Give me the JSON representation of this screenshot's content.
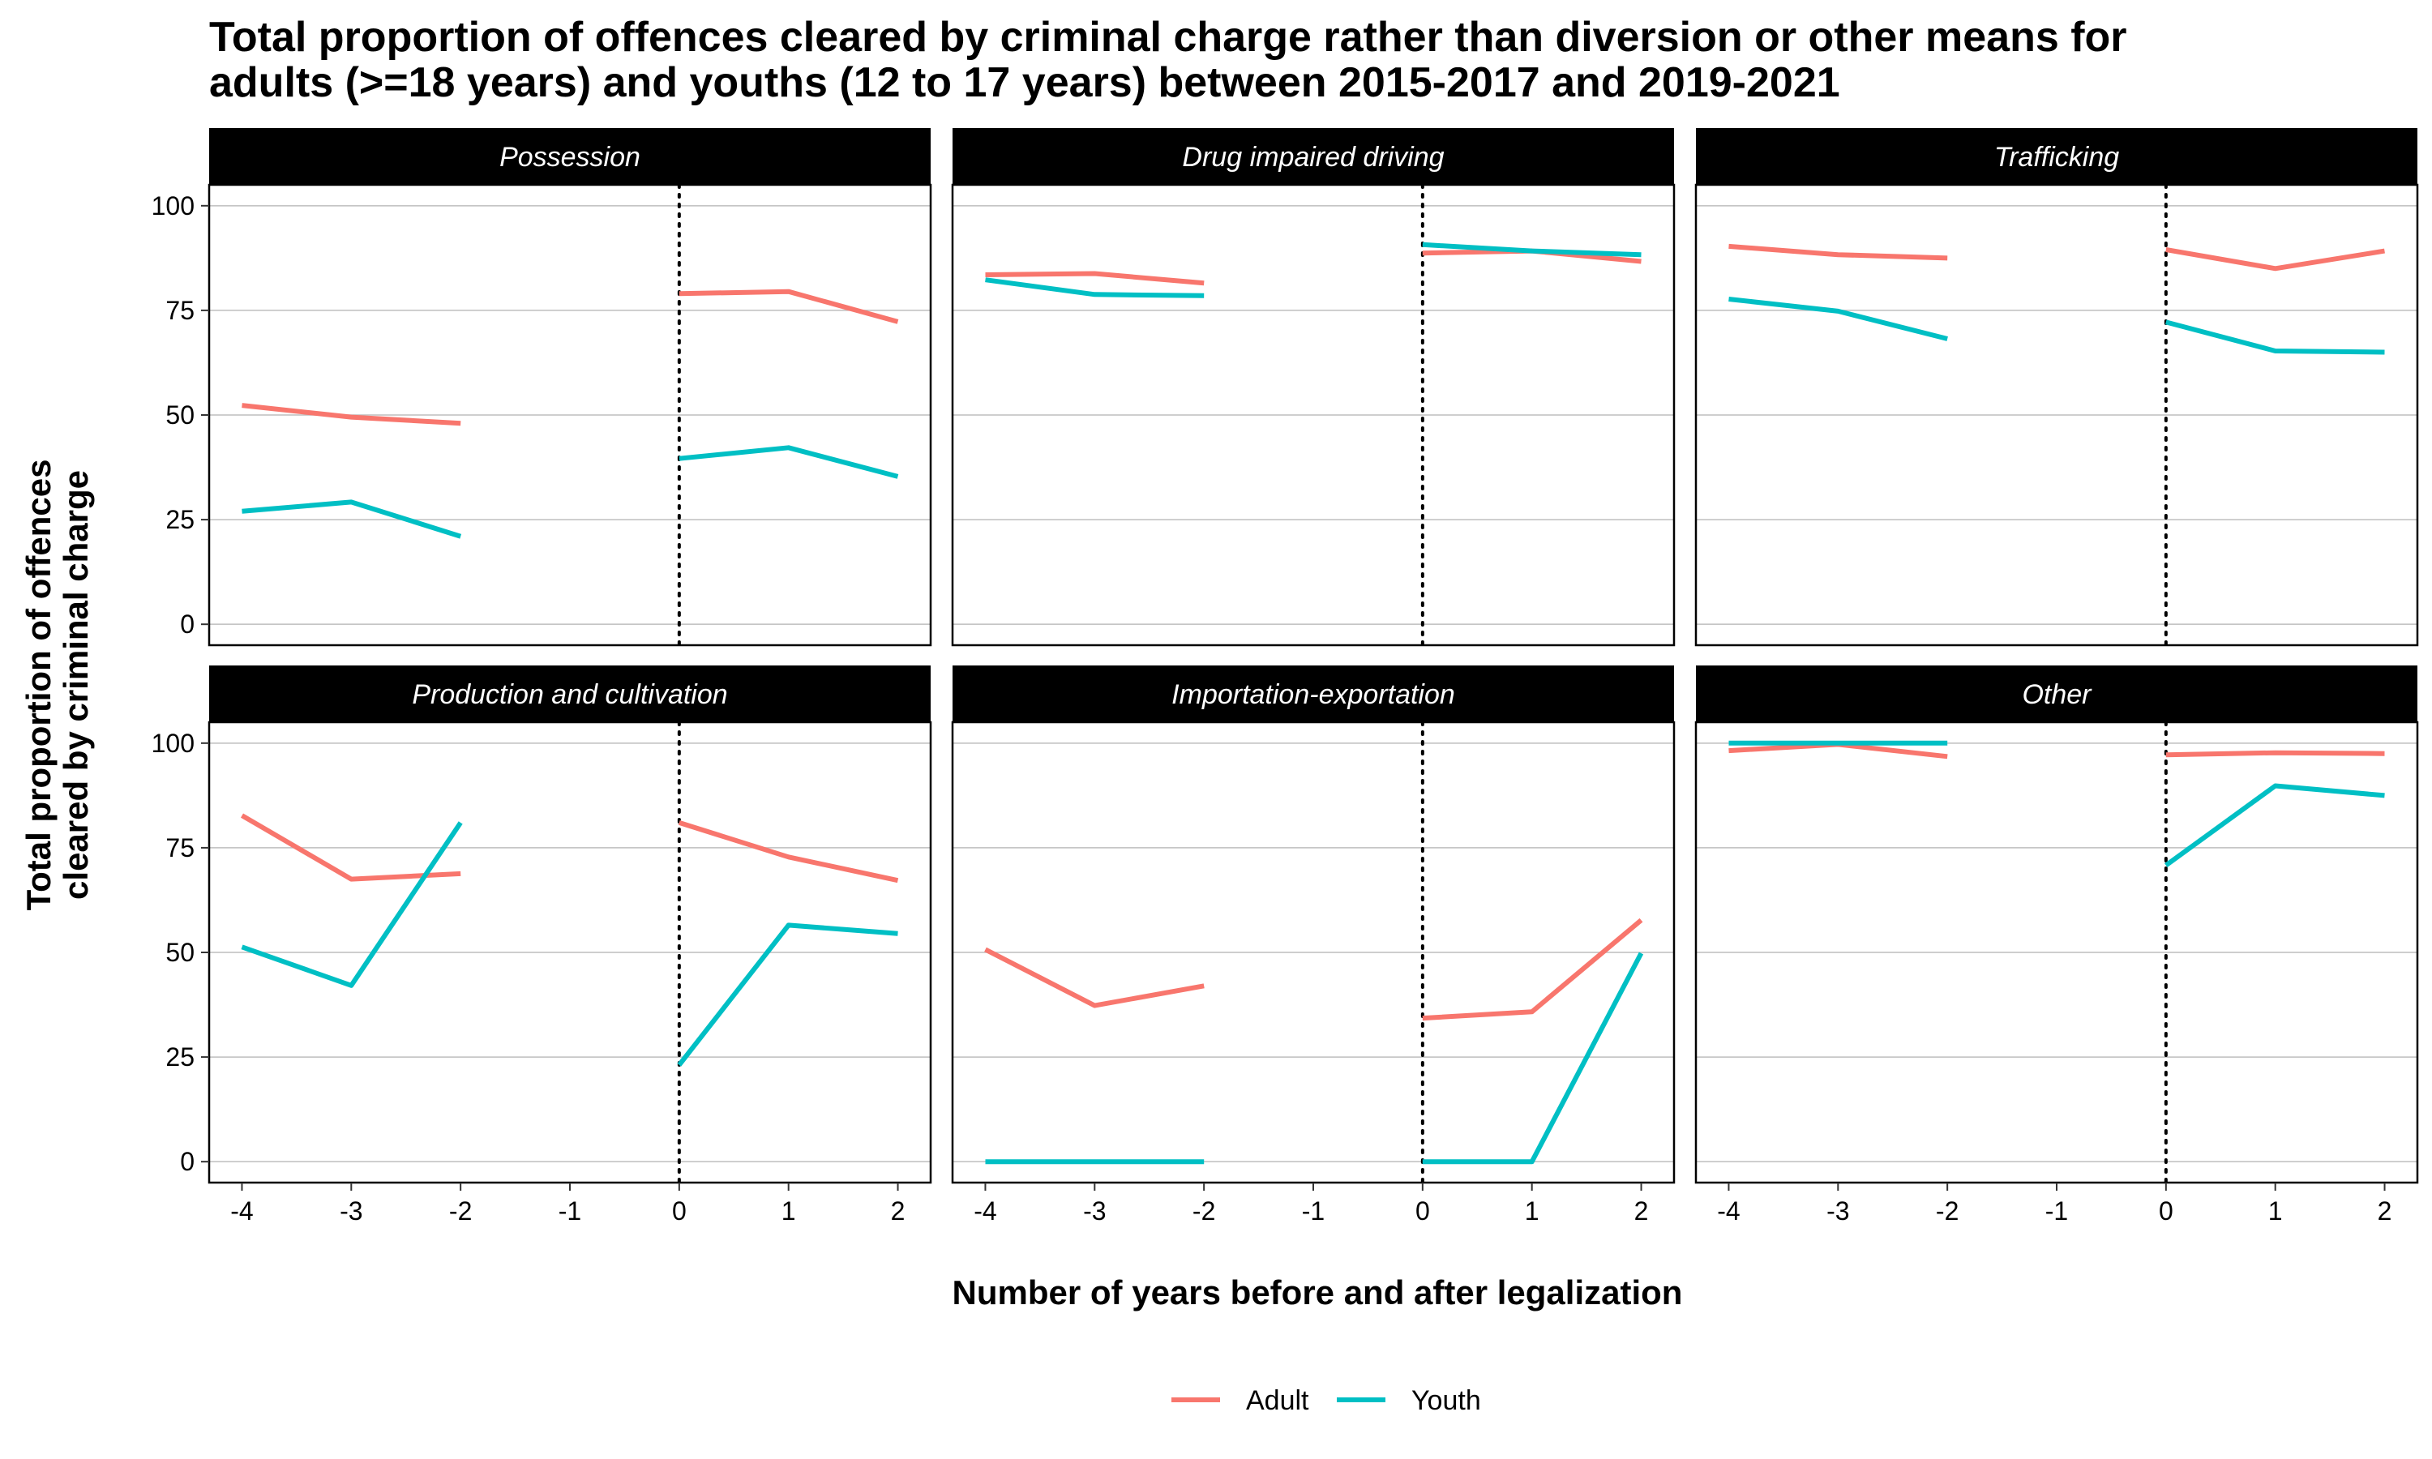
{
  "title_lines": [
    "Total proportion of offences cleared by criminal charge rather than diversion or other means for",
    "adults (>=18 years) and youths (12 to 17 years) between 2015-2017 and 2019-2021"
  ],
  "colors": {
    "adult": "#F8766D",
    "youth": "#00BFC4",
    "strip": "#000000",
    "grid": "#BEBEBE"
  },
  "chart_data": {
    "type": "line",
    "title": "Total proportion of offences cleared by criminal charge rather than diversion or other means for adults (>=18 years) and youths (12 to 17 years) between 2015-2017 and 2019-2021",
    "xlabel": "Number of years before and after legalization",
    "ylabel_lines": [
      "Total proportion of offences",
      "cleared by criminal charge"
    ],
    "x_ticks": [
      -4,
      -3,
      -2,
      -1,
      0,
      1,
      2
    ],
    "y_ticks": [
      0,
      25,
      50,
      75,
      100
    ],
    "xlim": [
      -4.3,
      2.3
    ],
    "ylim": [
      -5,
      105
    ],
    "legend_position": "bottom",
    "legend": [
      "Adult",
      "Youth"
    ],
    "reference_line_x": 0,
    "panels": [
      {
        "name": "Possession",
        "series": [
          {
            "name": "Adult",
            "segments": [
              [
                [
                  -4,
                  52.3
                ],
                [
                  -3,
                  49.5
                ],
                [
                  -2,
                  48
                ]
              ],
              [
                [
                  0,
                  79
                ],
                [
                  1,
                  79.5
                ],
                [
                  2,
                  72.3
                ]
              ]
            ]
          },
          {
            "name": "Youth",
            "segments": [
              [
                [
                  -4,
                  27
                ],
                [
                  -3,
                  29.2
                ],
                [
                  -2,
                  21
                ]
              ],
              [
                [
                  0,
                  39.6
                ],
                [
                  1,
                  42.2
                ],
                [
                  2,
                  35.3
                ]
              ]
            ]
          }
        ]
      },
      {
        "name": "Drug impaired driving",
        "series": [
          {
            "name": "Adult",
            "segments": [
              [
                [
                  -4,
                  83.5
                ],
                [
                  -3,
                  83.8
                ],
                [
                  -2,
                  81.5
                ]
              ],
              [
                [
                  0,
                  88.7
                ],
                [
                  1,
                  89.2
                ],
                [
                  2,
                  86.7
                ]
              ]
            ]
          },
          {
            "name": "Youth",
            "segments": [
              [
                [
                  -4,
                  82.3
                ],
                [
                  -3,
                  78.8
                ],
                [
                  -2,
                  78.5
                ]
              ],
              [
                [
                  0,
                  90.7
                ],
                [
                  1,
                  89.2
                ],
                [
                  2,
                  88.3
                ]
              ]
            ]
          }
        ]
      },
      {
        "name": "Trafficking",
        "series": [
          {
            "name": "Adult",
            "segments": [
              [
                [
                  -4,
                  90.3
                ],
                [
                  -3,
                  88.3
                ],
                [
                  -2,
                  87.5
                ]
              ],
              [
                [
                  0,
                  89.5
                ],
                [
                  1,
                  85
                ],
                [
                  2,
                  89.2
                ]
              ]
            ]
          },
          {
            "name": "Youth",
            "segments": [
              [
                [
                  -4,
                  77.7
                ],
                [
                  -3,
                  74.8
                ],
                [
                  -2,
                  68.2
                ]
              ],
              [
                [
                  0,
                  72.2
                ],
                [
                  1,
                  65.3
                ],
                [
                  2,
                  65
                ]
              ]
            ]
          }
        ]
      },
      {
        "name": "Production and cultivation",
        "series": [
          {
            "name": "Adult",
            "segments": [
              [
                [
                  -4,
                  82.7
                ],
                [
                  -3,
                  67.5
                ],
                [
                  -2,
                  68.8
                ]
              ],
              [
                [
                  0,
                  81
                ],
                [
                  1,
                  72.8
                ],
                [
                  2,
                  67.2
                ]
              ]
            ]
          },
          {
            "name": "Youth",
            "segments": [
              [
                [
                  -4,
                  51.3
                ],
                [
                  -3,
                  42.1
                ],
                [
                  -2,
                  81
                ]
              ],
              [
                [
                  0,
                  23.1
                ],
                [
                  1,
                  56.5
                ],
                [
                  2,
                  54.5
                ]
              ]
            ]
          }
        ]
      },
      {
        "name": "Importation-exportation",
        "series": [
          {
            "name": "Adult",
            "segments": [
              [
                [
                  -4,
                  50.7
                ],
                [
                  -3,
                  37.3
                ],
                [
                  -2,
                  42
                ]
              ],
              [
                [
                  0,
                  34.3
                ],
                [
                  1,
                  35.8
                ],
                [
                  2,
                  57.7
                ]
              ]
            ]
          },
          {
            "name": "Youth",
            "segments": [
              [
                [
                  -4,
                  0
                ],
                [
                  -3,
                  0
                ],
                [
                  -2,
                  0
                ]
              ],
              [
                [
                  0,
                  0
                ],
                [
                  1,
                  0
                ],
                [
                  2,
                  49.8
                ]
              ]
            ]
          }
        ]
      },
      {
        "name": "Other",
        "series": [
          {
            "name": "Adult",
            "segments": [
              [
                [
                  -4,
                  98.2
                ],
                [
                  -3,
                  99.7
                ],
                [
                  -2,
                  96.8
                ]
              ],
              [
                [
                  0,
                  97.2
                ],
                [
                  1,
                  97.7
                ],
                [
                  2,
                  97.5
                ]
              ]
            ]
          },
          {
            "name": "Youth",
            "segments": [
              [
                [
                  -4,
                  100
                ],
                [
                  -3,
                  100
                ],
                [
                  -2,
                  100
                ]
              ],
              [
                [
                  0,
                  70.8
                ],
                [
                  1,
                  89.8
                ],
                [
                  2,
                  87.5
                ]
              ]
            ]
          }
        ]
      }
    ]
  }
}
